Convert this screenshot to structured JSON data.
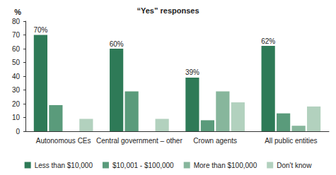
{
  "chart_data": {
    "type": "bar",
    "title": "“Yes” responses",
    "y_label": "%",
    "categories": [
      "Autonomous CEs",
      "Central government – other",
      "Crown agents",
      "All public entities"
    ],
    "series": [
      {
        "name": "Less than $10,000",
        "color": "#2e7a57",
        "values": [
          70,
          60,
          39,
          62
        ],
        "value_labels": [
          "70%",
          "60%",
          "39%",
          "62%"
        ]
      },
      {
        "name": "$10,001 - $100,000",
        "color": "#5a9b7b",
        "values": [
          19,
          29,
          8,
          13
        ]
      },
      {
        "name": "More than $100,000",
        "color": "#87b69c",
        "values": [
          0,
          0,
          29,
          4
        ]
      },
      {
        "name": "Don't know",
        "color": "#b2d1be",
        "values": [
          9,
          9,
          21,
          18
        ]
      }
    ],
    "ylim": [
      0,
      80
    ],
    "yticks": [
      0,
      10,
      20,
      30,
      40,
      50,
      60,
      70,
      80
    ],
    "grid": false,
    "legend": "bottom"
  }
}
